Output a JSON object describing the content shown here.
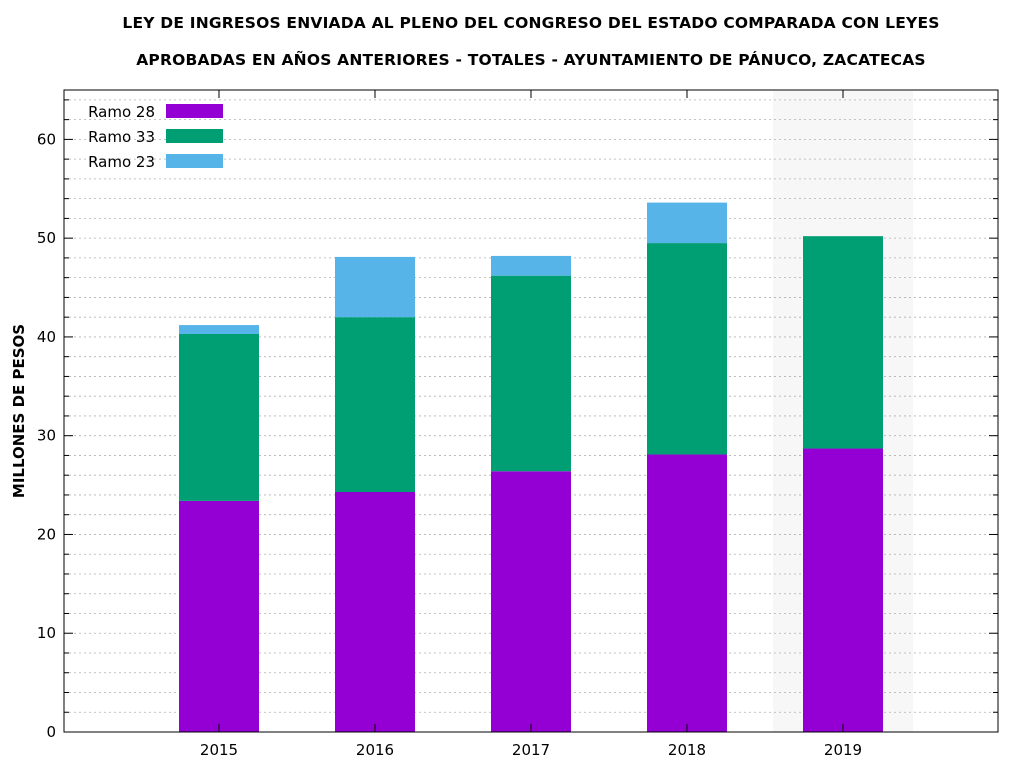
{
  "chart_data": {
    "type": "bar",
    "stacked": true,
    "title_lines": [
      "LEY DE INGRESOS ENVIADA AL PLENO DEL CONGRESO DEL ESTADO COMPARADA CON LEYES",
      "APROBADAS EN AÑOS ANTERIORES -  TOTALES - AYUNTAMIENTO DE PÁNUCO, ZACATECAS"
    ],
    "ylabel": "MILLONES DE PESOS",
    "xlabel": "",
    "categories": [
      "2015",
      "2016",
      "2017",
      "2018",
      "2019"
    ],
    "series": [
      {
        "name": "Ramo 28",
        "color": "#9400D3",
        "values": [
          23.4,
          24.3,
          26.4,
          28.1,
          28.7
        ]
      },
      {
        "name": "Ramo 33",
        "color": "#009E73",
        "values": [
          16.9,
          17.7,
          19.8,
          21.4,
          21.5
        ]
      },
      {
        "name": "Ramo 23",
        "color": "#56B4E9",
        "values": [
          0.9,
          6.1,
          2.0,
          4.1,
          0
        ]
      }
    ],
    "ylim": [
      0,
      65
    ],
    "yticks": [
      0,
      10,
      20,
      30,
      40,
      50,
      60
    ],
    "grid": true,
    "legend": "top-left",
    "highlight_category": "2019"
  }
}
